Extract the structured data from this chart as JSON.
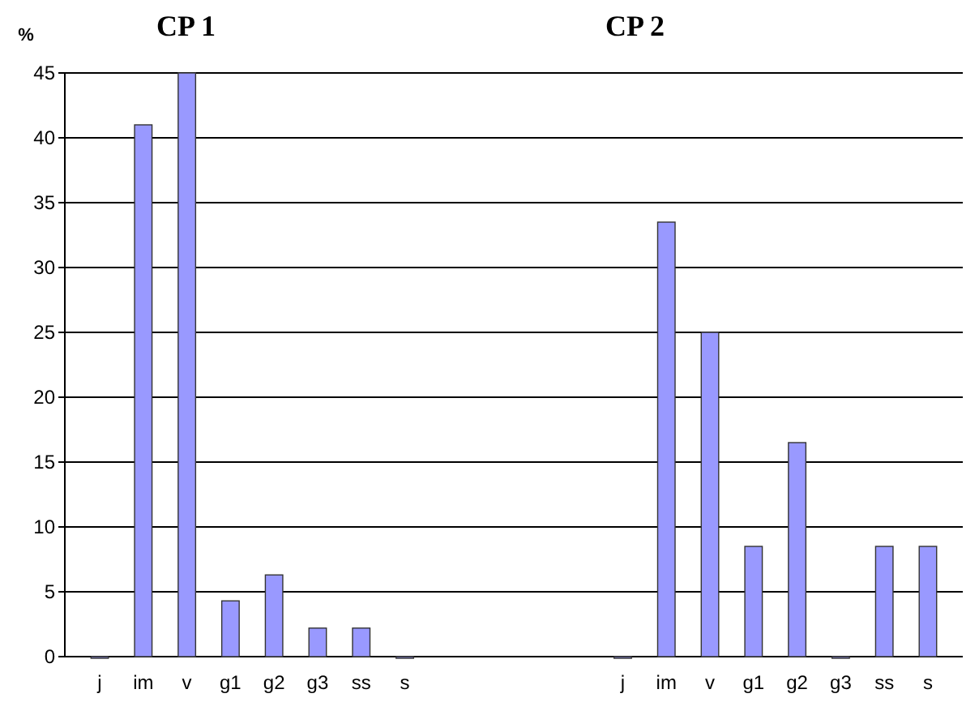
{
  "chart_data": {
    "type": "bar",
    "ylabel": "%",
    "annotations": [
      "CP 1",
      "CP 2"
    ],
    "categories": [
      "j",
      "im",
      "v",
      "g1",
      "g2",
      "g3",
      "ss",
      "s",
      null,
      null,
      null,
      null,
      "j",
      "im",
      "v",
      "g1",
      "g2",
      "g3",
      "ss",
      "s"
    ],
    "values": [
      0,
      41,
      45,
      4.3,
      6.3,
      2.2,
      2.2,
      0,
      null,
      null,
      null,
      null,
      0,
      33.5,
      25,
      8.5,
      16.5,
      0,
      8.5,
      8.5
    ],
    "color": "#9999ff",
    "ylim": [
      0,
      45
    ],
    "yticks": [
      0,
      5,
      10,
      15,
      20,
      25,
      30,
      35,
      40,
      45
    ],
    "grid": "y"
  }
}
